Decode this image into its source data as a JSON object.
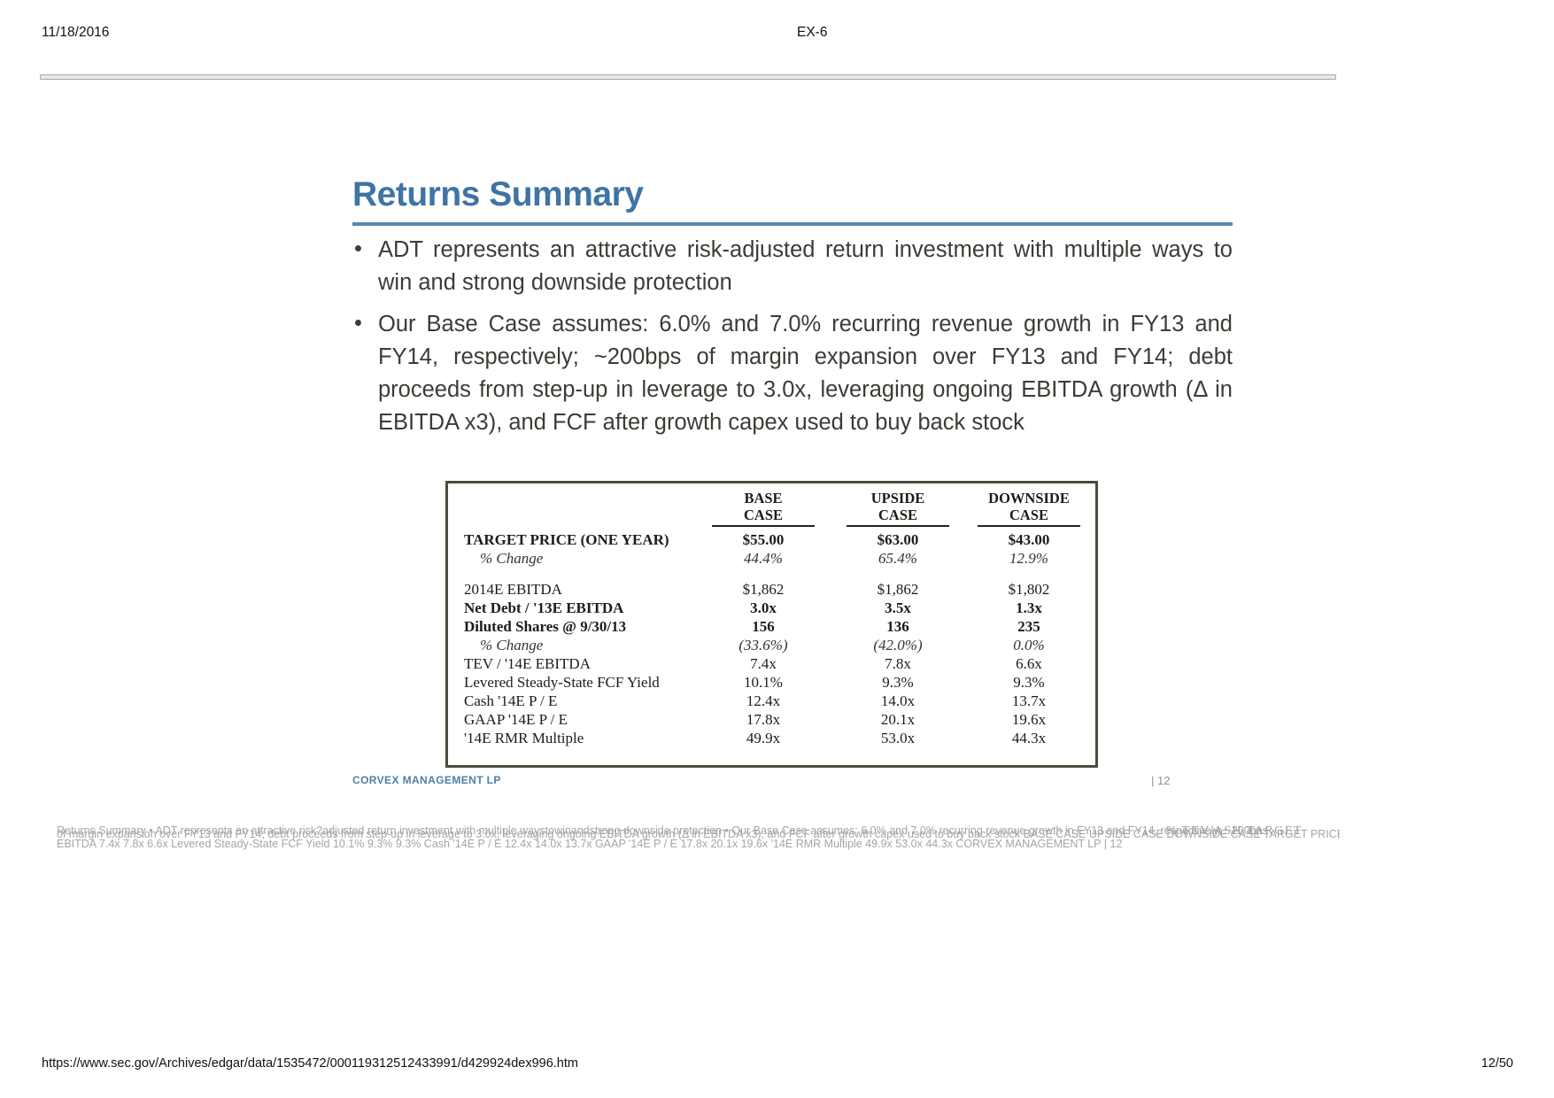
{
  "page": {
    "header": {
      "date": "11/18/2016",
      "doc_label": "EX-6"
    },
    "footer": {
      "url": "https://www.sec.gov/Archives/edgar/data/1535472/000119312512433991/d429924dex996.htm",
      "page_indicator": "12/50"
    }
  },
  "slide": {
    "title": "Returns Summary",
    "bullets": [
      "ADT represents an attractive risk-adjusted return investment with multiple ways to win and strong downside protection",
      "Our Base Case assumes: 6.0% and 7.0% recurring revenue growth in FY13 and FY14, respectively; ~200bps of margin expansion over FY13 and FY14; debt proceeds from step-up in leverage to 3.0x, leveraging ongoing EBITDA growth (Δ in EBITDA x3), and FCF after growth capex used to buy back stock"
    ],
    "table": {
      "headers": [
        {
          "l1": "BASE",
          "l2": "CASE"
        },
        {
          "l1": "UPSIDE",
          "l2": "CASE"
        },
        {
          "l1": "DOWNSIDE",
          "l2": "CASE"
        }
      ],
      "rows": [
        {
          "label": "TARGET PRICE (ONE YEAR)",
          "values": [
            "$55.00",
            "$63.00",
            "$43.00"
          ],
          "style": "bold"
        },
        {
          "label": "% Change",
          "values": [
            "44.4%",
            "65.4%",
            "12.9%"
          ],
          "style": "italic"
        },
        {
          "label": "",
          "values": [
            "",
            "",
            ""
          ],
          "style": "spacer"
        },
        {
          "label": "2014E EBITDA",
          "values": [
            "$1,862",
            "$1,862",
            "$1,802"
          ],
          "style": "normal"
        },
        {
          "label": "Net Debt / '13E EBITDA",
          "values": [
            "3.0x",
            "3.5x",
            "1.3x"
          ],
          "style": "bold"
        },
        {
          "label": "Diluted Shares @ 9/30/13",
          "values": [
            "156",
            "136",
            "235"
          ],
          "style": "bold"
        },
        {
          "label": "% Change",
          "values": [
            "(33.6%)",
            "(42.0%)",
            "0.0%"
          ],
          "style": "italic"
        },
        {
          "label": "TEV / '14E EBITDA",
          "values": [
            "7.4x",
            "7.8x",
            "6.6x"
          ],
          "style": "normal"
        },
        {
          "label": "Levered Steady-State FCF Yield",
          "values": [
            "10.1%",
            "9.3%",
            "9.3%"
          ],
          "style": "normal"
        },
        {
          "label": "Cash '14E P / E",
          "values": [
            "12.4x",
            "14.0x",
            "13.7x"
          ],
          "style": "normal"
        },
        {
          "label": "GAAP '14E P / E",
          "values": [
            "17.8x",
            "20.1x",
            "19.6x"
          ],
          "style": "normal"
        },
        {
          "label": "'14E RMR Multiple",
          "values": [
            "49.9x",
            "53.0x",
            "44.3x"
          ],
          "style": "normal"
        }
      ]
    },
    "footer": {
      "company": "CORVEX MANAGEMENT LP",
      "page_number": "|  12"
    },
    "colors": {
      "accent_blue": "#3f74a4",
      "rule_blue": "#5b87ad",
      "body_text": "#3c3b35",
      "table_border": "#4c4a3c",
      "footer_blue": "#4e80a7"
    }
  },
  "overlay_text": {
    "line1": "Returns Summary • ADT represents an attractive risk?adjusted return investment with multiple waystowinandstrong downside protection • Our Base Case assumes: 6.0% and 7.0% recurring revenue growth in FY13 and FY14, respectively; ~200bps",
    "line2": "of margin expansion over FY13 and FY14; debt proceeds from step-up in leverage to 3.0x, leveraging ongoing EBITDA growth (Δ in EBITDA x3), and FCF after growth capex used to buy back stock BASE CASE UPSIDE CASE DOWNSIDE CASE TARGET PRICE (ONE YEAR) $55.00 $63.00 $43.00 % Change 44.4% 65.4% 12.9% 2014E EBITDA $1,862 $1,862 $1,802 Net Debt / '13E EBITDA 3.0x 3.5x 1.3x Diluted Shares @ 9/30/13 156 136 235 % Change (33.6%) (42.0%) 0.0% TEV / '14E",
    "line3": "EBITDA 7.4x 7.8x 6.6x Levered Steady-State FCF Yield 10.1% 9.3% 9.3% Cash '14E P / E 12.4x 14.0x 13.7x GAAP '14E P / E 17.8x 20.1x 19.6x '14E RMR Multiple 49.9x 53.0x 44.3x CORVEX MANAGEMENT LP | 12",
    "tail": "% TEV ASH TARGET"
  }
}
